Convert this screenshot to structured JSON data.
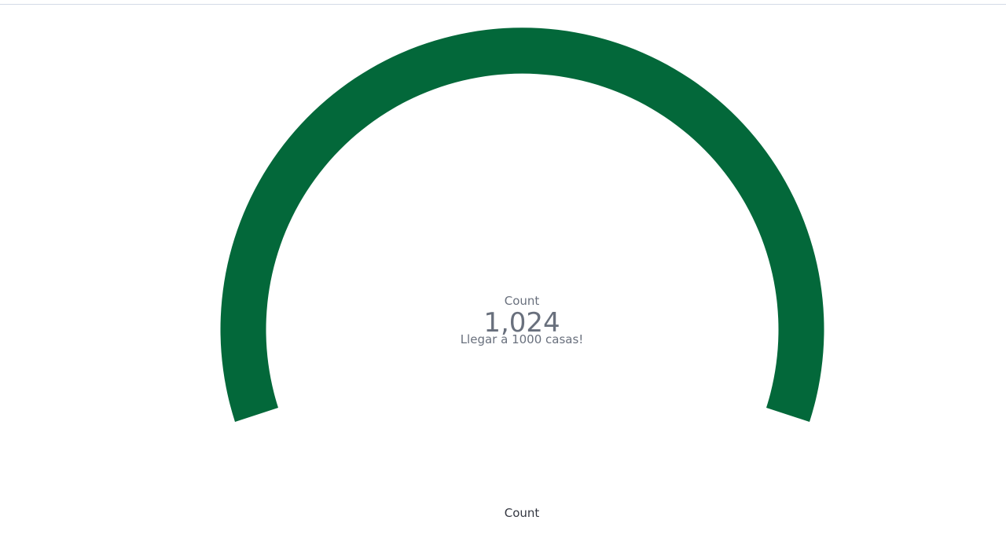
{
  "gauge": {
    "value": 1024,
    "value_text": "1,024",
    "label": "Count",
    "sublabel": "Llegar a 1000 casas!",
    "fill_fraction": 1.0,
    "color": "#03683a",
    "text_color": "#69707d"
  },
  "footer": {
    "label": "Count"
  }
}
